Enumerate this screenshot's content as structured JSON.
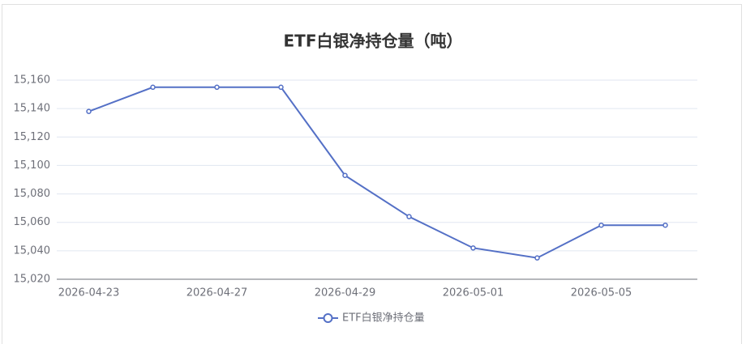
{
  "chart_data": {
    "type": "line",
    "title": "ETF白银净持仓量（吨）",
    "categories": [
      "2026-04-23",
      null,
      "2026-04-27",
      null,
      "2026-04-29",
      null,
      "2026-05-01",
      null,
      "2026-05-05",
      null
    ],
    "series": [
      {
        "name": "ETF白银净持仓量",
        "color": "#5470c6",
        "values": [
          15138,
          15155,
          15155,
          15155,
          15093,
          15064,
          15042,
          15035,
          15058,
          15058
        ]
      }
    ],
    "ylim": [
      15020,
      15160
    ],
    "yticks": [
      {
        "value": 15020,
        "label": "15,020"
      },
      {
        "value": 15040,
        "label": "15,040"
      },
      {
        "value": 15060,
        "label": "15,060"
      },
      {
        "value": 15080,
        "label": "15,080"
      },
      {
        "value": 15100,
        "label": "15,100"
      },
      {
        "value": 15120,
        "label": "15,120"
      },
      {
        "value": 15140,
        "label": "15,140"
      },
      {
        "value": 15160,
        "label": "15,160"
      }
    ],
    "grid": true
  }
}
